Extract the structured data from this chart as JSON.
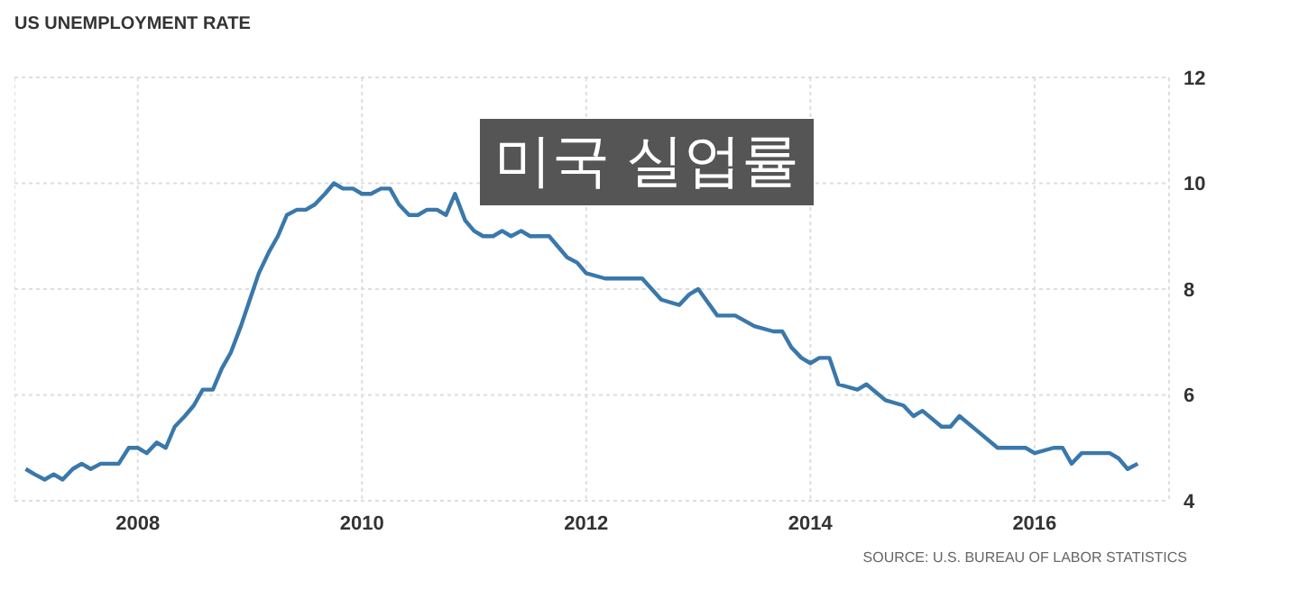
{
  "chart_data": {
    "type": "line",
    "title": "US UNEMPLOYMENT RATE",
    "subtitle": "미국 실업률",
    "annotations": [
      "SOURCE: U.S. BUREAU OF LABOR STATISTICS"
    ],
    "x": [
      2007.0,
      2007.08,
      2007.17,
      2007.25,
      2007.33,
      2007.42,
      2007.5,
      2007.58,
      2007.67,
      2007.75,
      2007.83,
      2007.92,
      2008.0,
      2008.08,
      2008.17,
      2008.25,
      2008.33,
      2008.42,
      2008.5,
      2008.58,
      2008.67,
      2008.75,
      2008.83,
      2008.92,
      2009.0,
      2009.08,
      2009.17,
      2009.25,
      2009.33,
      2009.42,
      2009.5,
      2009.58,
      2009.67,
      2009.75,
      2009.83,
      2009.92,
      2010.0,
      2010.08,
      2010.17,
      2010.25,
      2010.33,
      2010.42,
      2010.5,
      2010.58,
      2010.67,
      2010.75,
      2010.83,
      2010.92,
      2011.0,
      2011.08,
      2011.17,
      2011.25,
      2011.33,
      2011.42,
      2011.5,
      2011.58,
      2011.67,
      2011.75,
      2011.83,
      2011.92,
      2012.0,
      2012.17,
      2012.25,
      2012.33,
      2012.5,
      2012.67,
      2012.83,
      2012.92,
      2013.0,
      2013.17,
      2013.33,
      2013.5,
      2013.67,
      2013.75,
      2013.83,
      2013.92,
      2014.0,
      2014.08,
      2014.17,
      2014.25,
      2014.42,
      2014.5,
      2014.67,
      2014.83,
      2014.92,
      2015.0,
      2015.17,
      2015.25,
      2015.33,
      2015.5,
      2015.67,
      2015.92,
      2016.0,
      2016.17,
      2016.25,
      2016.33,
      2016.42,
      2016.58,
      2016.67,
      2016.75,
      2016.83,
      2016.92
    ],
    "series": [
      {
        "color": "#3a78ab",
        "values": [
          4.6,
          4.5,
          4.4,
          4.5,
          4.4,
          4.6,
          4.7,
          4.6,
          4.7,
          4.7,
          4.7,
          5.0,
          5.0,
          4.9,
          5.1,
          5.0,
          5.4,
          5.6,
          5.8,
          6.1,
          6.1,
          6.5,
          6.8,
          7.3,
          7.8,
          8.3,
          8.7,
          9.0,
          9.4,
          9.5,
          9.5,
          9.6,
          9.8,
          10.0,
          9.9,
          9.9,
          9.8,
          9.8,
          9.9,
          9.9,
          9.6,
          9.4,
          9.4,
          9.5,
          9.5,
          9.4,
          9.8,
          9.3,
          9.1,
          9.0,
          9.0,
          9.1,
          9.0,
          9.1,
          9.0,
          9.0,
          9.0,
          8.8,
          8.6,
          8.5,
          8.3,
          8.2,
          8.2,
          8.2,
          8.2,
          7.8,
          7.7,
          7.9,
          8.0,
          7.5,
          7.5,
          7.3,
          7.2,
          7.2,
          6.9,
          6.7,
          6.6,
          6.7,
          6.7,
          6.2,
          6.1,
          6.2,
          5.9,
          5.8,
          5.6,
          5.7,
          5.4,
          5.4,
          5.6,
          5.3,
          5.0,
          5.0,
          4.9,
          5.0,
          5.0,
          4.7,
          4.9,
          4.9,
          4.9,
          4.8,
          4.6,
          4.7
        ]
      }
    ],
    "xlim": [
      2006.9,
      2017.2
    ],
    "xticks": [
      2008,
      2010,
      2012,
      2014,
      2016
    ],
    "ylim": [
      4,
      12
    ],
    "yticks": [
      4,
      6,
      8,
      10,
      12
    ],
    "grid": true,
    "marker": "none",
    "line_style": "solid"
  }
}
